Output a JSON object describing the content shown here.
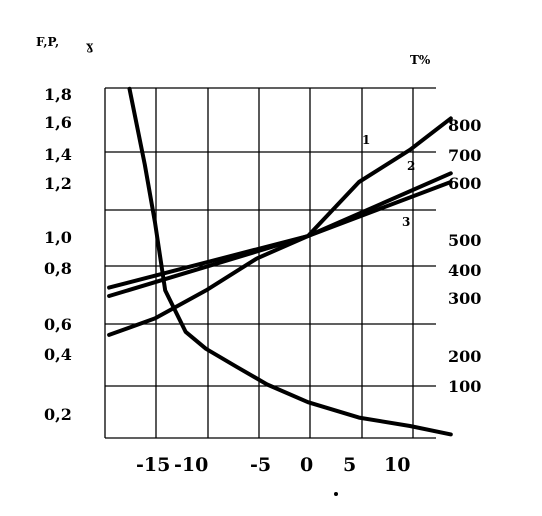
{
  "chart_data": {
    "type": "line",
    "title": "",
    "xlabel": "",
    "left_axis_label": "F,P,",
    "left_axis_symbol": "ɣ",
    "right_axis_label": "T%",
    "x_ticks": [
      "-15",
      "-10",
      "-5",
      "0",
      "5",
      "10"
    ],
    "left_ticks": [
      "1,8",
      "1,6",
      "1,4",
      "1,2",
      "1,0",
      "0,8",
      "0,6",
      "0,4",
      "0,2"
    ],
    "right_ticks": [
      "800",
      "700",
      "600",
      "500",
      "400",
      "300",
      "200",
      "100"
    ],
    "xlim": [
      -19.5,
      14
    ],
    "curve_labels": [
      "1",
      "2",
      "3"
    ],
    "grid": true,
    "series": [
      {
        "name": "1",
        "axis": "left",
        "x": [
          -19.5,
          -15,
          -10,
          -5,
          0,
          5,
          10,
          14
        ],
        "y": [
          0.53,
          0.62,
          0.72,
          0.86,
          1.0,
          1.2,
          1.42,
          1.62
        ]
      },
      {
        "name": "2",
        "axis": "left",
        "x": [
          -19.5,
          0,
          14
        ],
        "y": [
          0.7,
          1.0,
          1.26
        ]
      },
      {
        "name": "3",
        "axis": "left",
        "x": [
          -19.5,
          0,
          14
        ],
        "y": [
          0.73,
          1.0,
          1.2
        ]
      },
      {
        "axis": "left",
        "x": [
          -17.5,
          -16,
          -15,
          -14,
          -12,
          -10,
          -7,
          -4,
          0,
          5,
          10,
          14
        ],
        "y": [
          1.85,
          1.32,
          1.05,
          0.72,
          0.55,
          0.44,
          0.36,
          0.3,
          0.24,
          0.17,
          0.1,
          0.03
        ]
      }
    ]
  }
}
